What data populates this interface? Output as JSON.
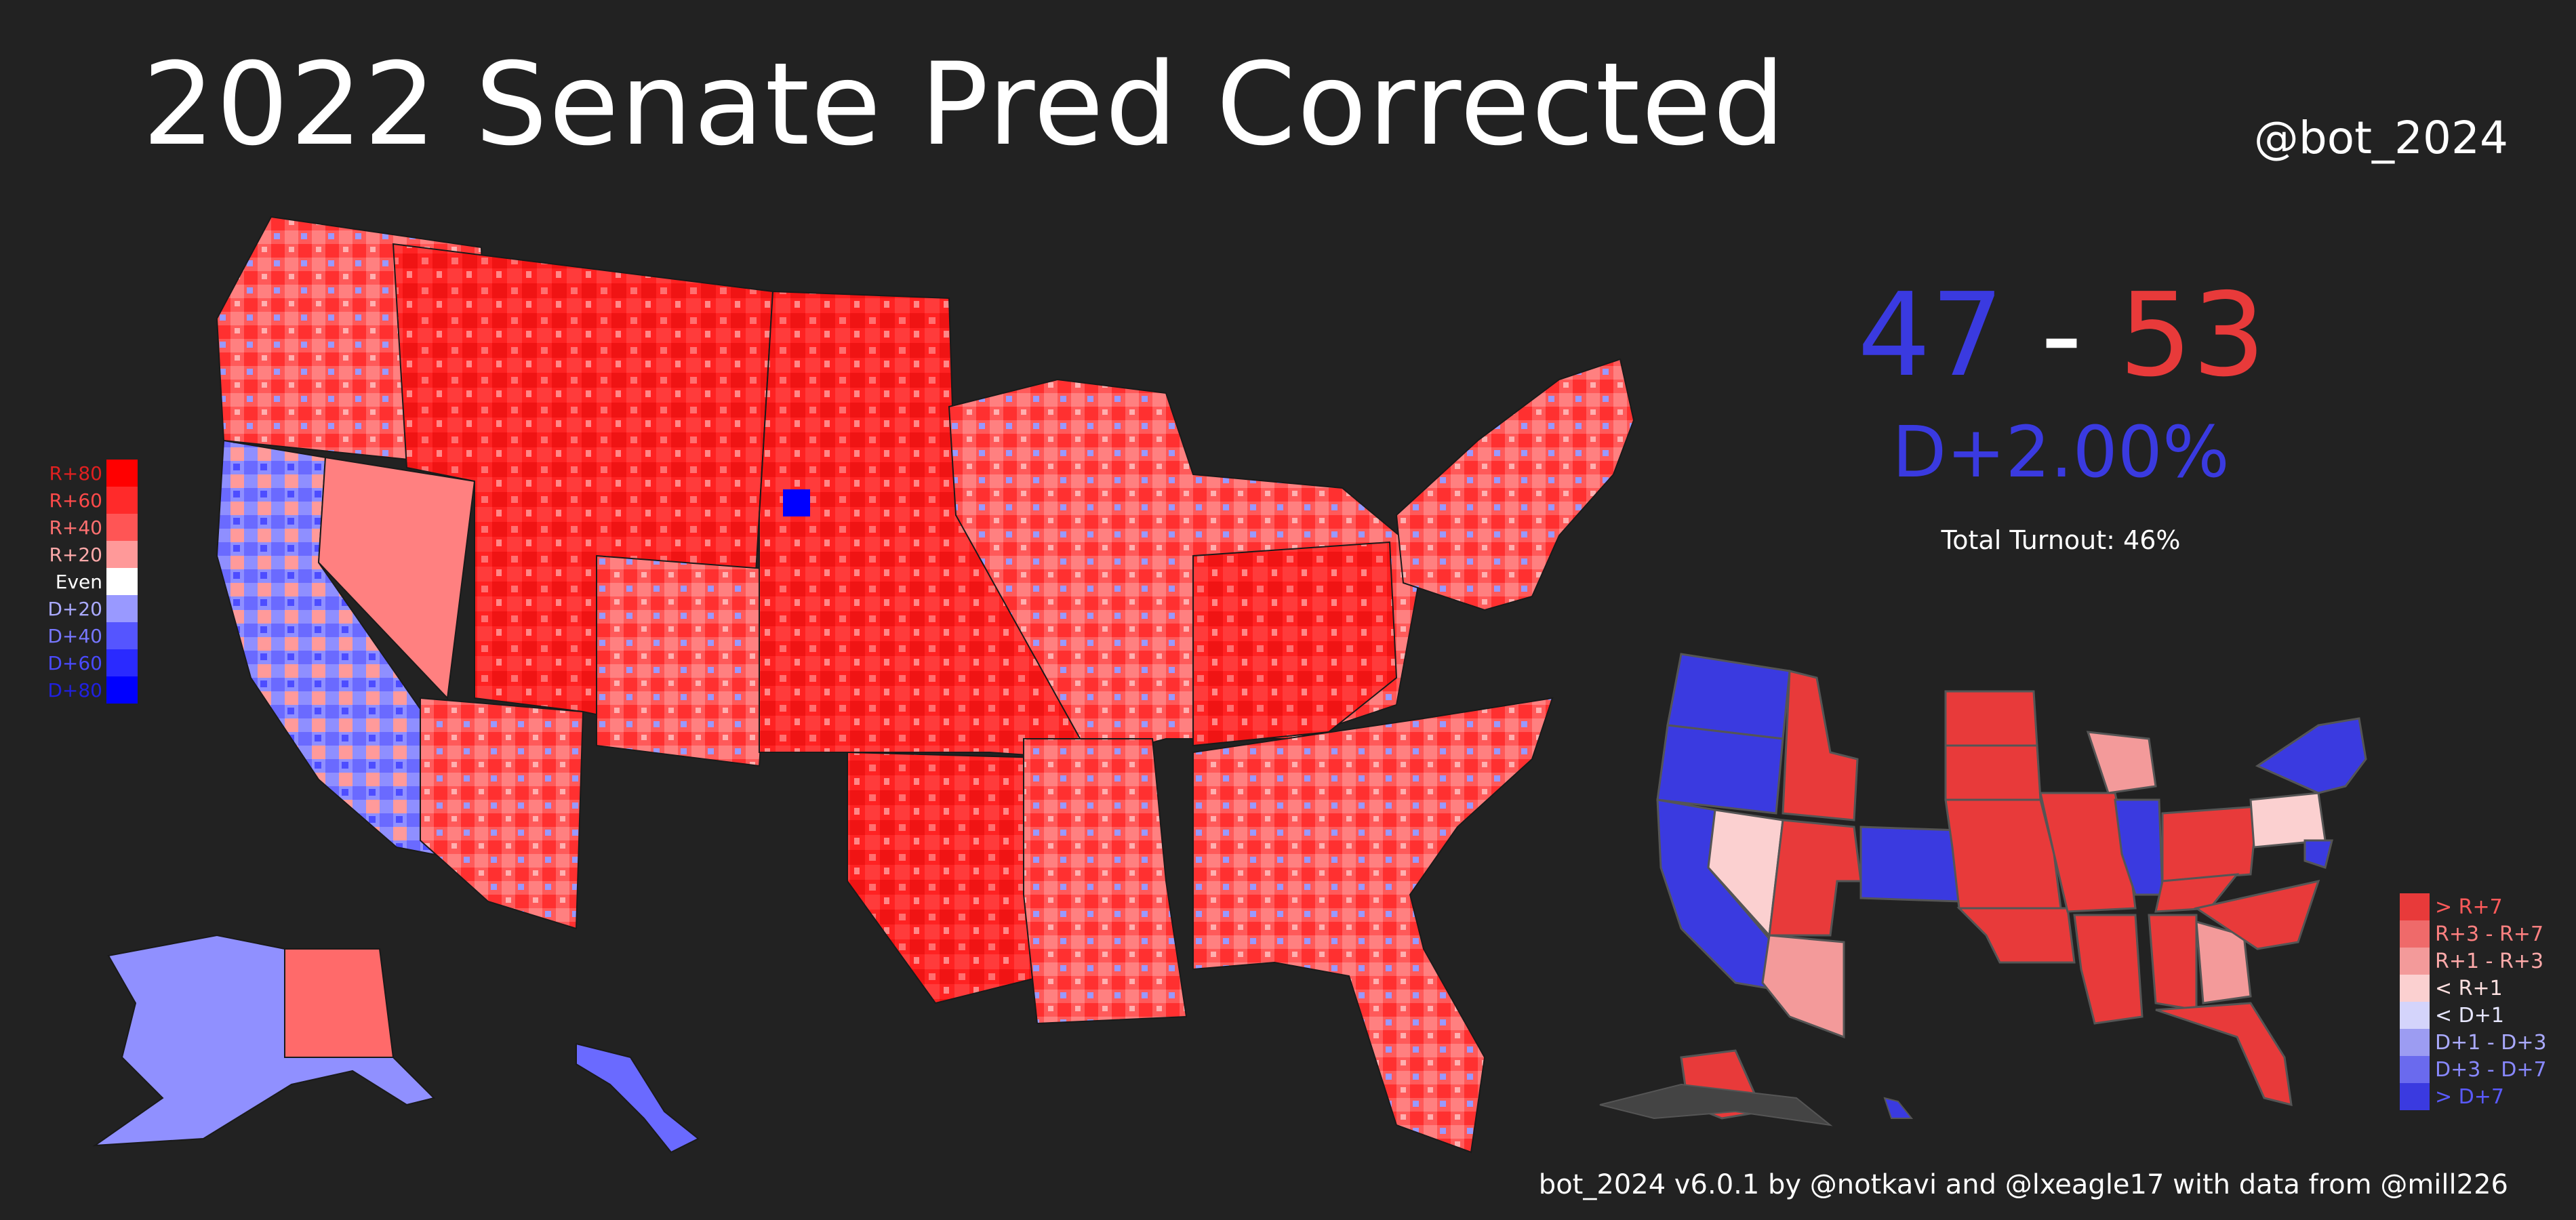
{
  "title": "2022 Senate Pred Corrected",
  "handle": "@bot_2024",
  "result": {
    "dem_seats": "47",
    "dash": " - ",
    "rep_seats": "53",
    "margin": "D+2.00%",
    "turnout": "Total Turnout: 46%"
  },
  "footer": "bot_2024 v6.0.1 by @notkavi and @lxeagle17 with data from @mill226",
  "colors": {
    "background": "#222222",
    "dem": "#3a3ae0",
    "rep": "#e83a3a"
  },
  "county_legend": [
    {
      "label": "R+80",
      "color": "#ff0000",
      "text_color": "#e02020"
    },
    {
      "label": "R+60",
      "color": "#ff2a2a",
      "text_color": "#ff4a4a"
    },
    {
      "label": "R+40",
      "color": "#ff5555",
      "text_color": "#ff7070"
    },
    {
      "label": "R+20",
      "color": "#ff9999",
      "text_color": "#ffaaaa"
    },
    {
      "label": "Even",
      "color": "#ffffff",
      "text_color": "#ffffff"
    },
    {
      "label": "D+20",
      "color": "#9999ff",
      "text_color": "#aaaaff"
    },
    {
      "label": "D+40",
      "color": "#5555ff",
      "text_color": "#7777ff"
    },
    {
      "label": "D+60",
      "color": "#2a2aff",
      "text_color": "#4a4aff"
    },
    {
      "label": "D+80",
      "color": "#0000ff",
      "text_color": "#2020e0"
    }
  ],
  "state_legend": [
    {
      "label": "> R+7",
      "color": "#e83a3a",
      "text_color": "#ff5a5a"
    },
    {
      "label": "R+3 - R+7",
      "color": "#ef6a6a",
      "text_color": "#ff8080"
    },
    {
      "label": "R+1 - R+3",
      "color": "#f39a9a",
      "text_color": "#ffaaaa"
    },
    {
      "label": "< R+1",
      "color": "#fbd0d0",
      "text_color": "#ffe0e0"
    },
    {
      "label": "< D+1",
      "color": "#d4d4fb",
      "text_color": "#e6e6ff"
    },
    {
      "label": "D+1 - D+3",
      "color": "#9c9cf2",
      "text_color": "#aaaaff"
    },
    {
      "label": "D+3 - D+7",
      "color": "#6a6aee",
      "text_color": "#8888ff"
    },
    {
      "label": "> D+7",
      "color": "#3a3ae0",
      "text_color": "#5a5aff"
    }
  ]
}
